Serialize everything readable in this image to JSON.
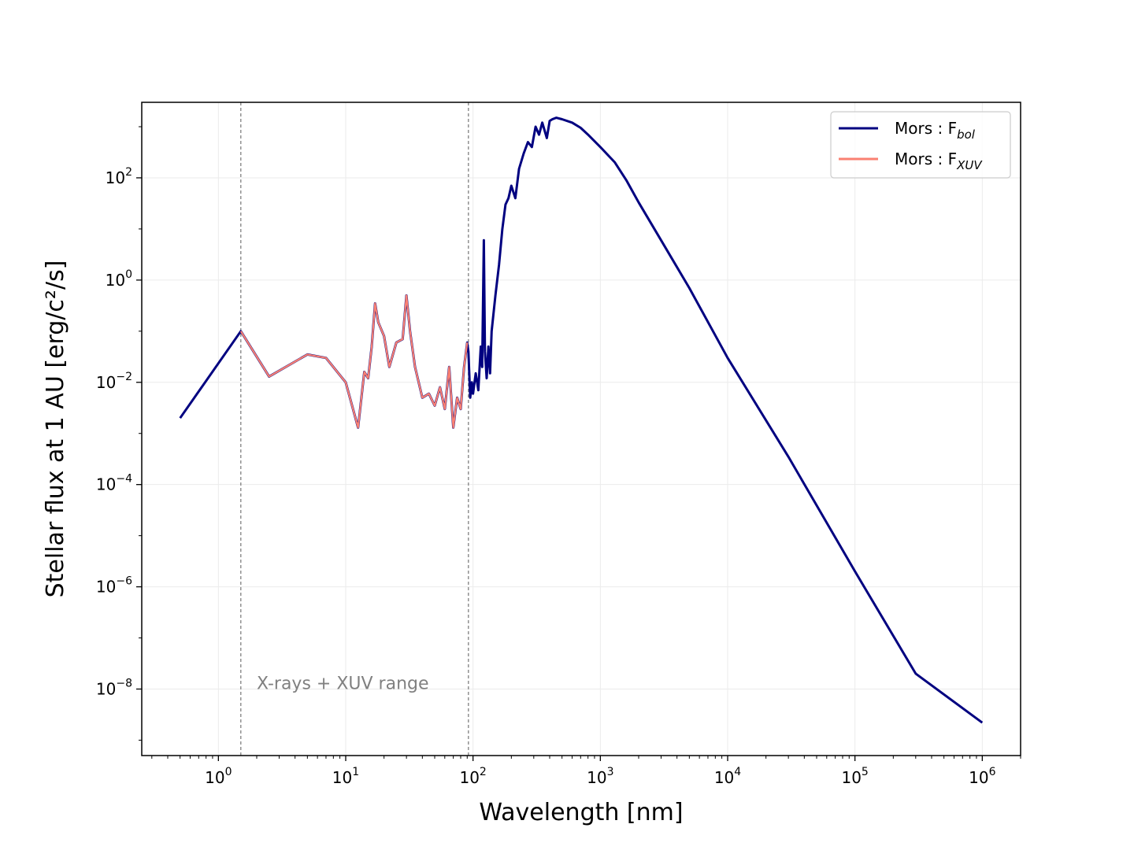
{
  "chart_data": {
    "type": "line",
    "title": "",
    "xlabel": "Wavelength [nm]",
    "ylabel": "Stellar flux at 1 AU [erg/c²/s]",
    "xscale": "log",
    "yscale": "log",
    "xlim": [
      0.25,
      2000000
    ],
    "ylim": [
      5e-10,
      3000
    ],
    "grid": true,
    "legend_position": "top-right",
    "x_ticks": [
      {
        "base": "10",
        "exp": "0",
        "value": 1
      },
      {
        "base": "10",
        "exp": "1",
        "value": 10
      },
      {
        "base": "10",
        "exp": "2",
        "value": 100
      },
      {
        "base": "10",
        "exp": "3",
        "value": 1000
      },
      {
        "base": "10",
        "exp": "4",
        "value": 10000
      },
      {
        "base": "10",
        "exp": "5",
        "value": 100000
      },
      {
        "base": "10",
        "exp": "6",
        "value": 1000000
      }
    ],
    "y_ticks": [
      {
        "base": "10",
        "exp": "−8",
        "value": 1e-08
      },
      {
        "base": "10",
        "exp": "−6",
        "value": 1e-06
      },
      {
        "base": "10",
        "exp": "−4",
        "value": 0.0001
      },
      {
        "base": "10",
        "exp": "−2",
        "value": 0.01
      },
      {
        "base": "10",
        "exp": "0",
        "value": 1
      },
      {
        "base": "10",
        "exp": "2",
        "value": 100
      }
    ],
    "vlines": [
      1.5,
      92
    ],
    "annotation": {
      "text": "X-rays + XUV range",
      "x": 2.0,
      "y": 1e-08
    },
    "series": [
      {
        "name_main": "Mors : F",
        "name_sub": "bol",
        "color": "#000080",
        "x": [
          0.5,
          1.5,
          2.5,
          5,
          7,
          10,
          12.5,
          14,
          15,
          16,
          17,
          18,
          20,
          22,
          25,
          28,
          30,
          32,
          35,
          40,
          45,
          50,
          55,
          60,
          65,
          70,
          75,
          80,
          85,
          90,
          92,
          95,
          98,
          100,
          105,
          110,
          115,
          118,
          121.6,
          124,
          128,
          132,
          136,
          140,
          150,
          160,
          170,
          180,
          190,
          200,
          215,
          230,
          250,
          270,
          290,
          310,
          330,
          350,
          380,
          400,
          420,
          450,
          500,
          600,
          700,
          800,
          1000,
          1300,
          1600,
          2000,
          3000,
          5000,
          10000,
          30000,
          100000,
          300000,
          1000000
        ],
        "y": [
          0.002,
          0.1,
          0.013,
          0.035,
          0.03,
          0.01,
          0.0013,
          0.016,
          0.012,
          0.05,
          0.35,
          0.15,
          0.08,
          0.02,
          0.06,
          0.07,
          0.5,
          0.1,
          0.02,
          0.005,
          0.006,
          0.0035,
          0.008,
          0.003,
          0.02,
          0.0013,
          0.005,
          0.003,
          0.02,
          0.06,
          0.04,
          0.005,
          0.01,
          0.006,
          0.015,
          0.007,
          0.05,
          0.02,
          6,
          0.04,
          0.012,
          0.05,
          0.015,
          0.1,
          0.5,
          2,
          10,
          30,
          40,
          70,
          40,
          150,
          300,
          500,
          400,
          1000,
          700,
          1200,
          600,
          1300,
          1400,
          1500,
          1400,
          1200,
          950,
          700,
          400,
          200,
          90,
          33,
          6,
          0.7,
          0.03,
          0.00035,
          2e-06,
          2e-08,
          2.2e-09
        ]
      },
      {
        "name_main": "Mors : F",
        "name_sub": "XUV",
        "color": "#FA8072",
        "x": [
          1.5,
          2.5,
          5,
          7,
          10,
          12.5,
          14,
          15,
          16,
          17,
          18,
          20,
          22,
          25,
          28,
          30,
          32,
          35,
          40,
          45,
          50,
          55,
          60,
          65,
          70,
          75,
          80,
          85,
          90
        ],
        "y": [
          0.1,
          0.013,
          0.035,
          0.03,
          0.01,
          0.0013,
          0.016,
          0.012,
          0.05,
          0.35,
          0.15,
          0.08,
          0.02,
          0.06,
          0.07,
          0.5,
          0.1,
          0.02,
          0.005,
          0.006,
          0.0035,
          0.008,
          0.003,
          0.02,
          0.0013,
          0.005,
          0.003,
          0.02,
          0.06
        ]
      }
    ]
  }
}
